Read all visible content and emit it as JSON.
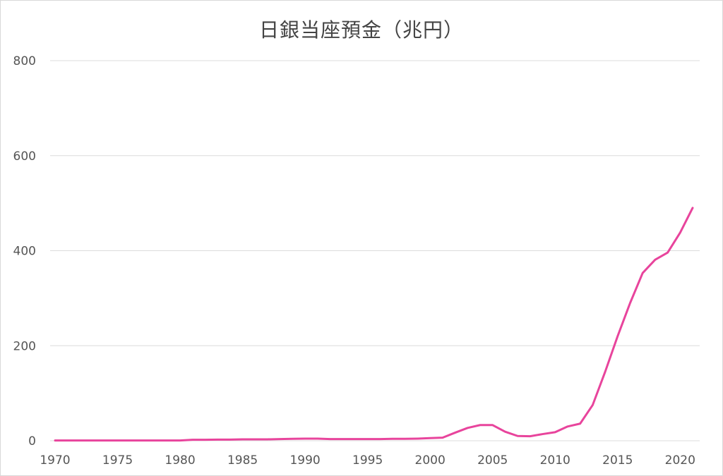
{
  "chart_data": {
    "type": "line",
    "title": "日銀当座預金（兆円）",
    "xlabel": "",
    "ylabel": "",
    "xlim": [
      1970,
      2021
    ],
    "ylim": [
      0,
      800
    ],
    "x_ticks": [
      "1970",
      "1975",
      "1980",
      "1985",
      "1990",
      "1995",
      "2000",
      "2005",
      "2010",
      "2015",
      "2020"
    ],
    "y_ticks": [
      "0",
      "200",
      "400",
      "600",
      "800"
    ],
    "grid": true,
    "legend": "none",
    "line_color": "#E8449C",
    "series": [
      {
        "x": [
          1970,
          1971,
          1972,
          1973,
          1974,
          1975,
          1976,
          1977,
          1978,
          1979,
          1980,
          1981,
          1982,
          1983,
          1984,
          1985,
          1986,
          1987,
          1988,
          1989,
          1990,
          1991,
          1992,
          1993,
          1994,
          1995,
          1996,
          1997,
          1998,
          1999,
          2000,
          2001,
          2002,
          2003,
          2004,
          2005,
          2006,
          2007,
          2008,
          2009,
          2010,
          2011,
          2012,
          2013,
          2014,
          2015,
          2016,
          2017,
          2018,
          2019,
          2020,
          2021
        ],
        "values": [
          0.5,
          0.5,
          0.5,
          0.5,
          0.5,
          0.5,
          0.5,
          0.5,
          0.5,
          0.5,
          0.5,
          2,
          2,
          2.5,
          2.5,
          3,
          3,
          3,
          3.5,
          4,
          4.5,
          4.5,
          3.5,
          3.5,
          3.5,
          3.5,
          3.5,
          4,
          4,
          4.5,
          5.5,
          6.5,
          17,
          27,
          33,
          33,
          19,
          10,
          9.5,
          14,
          18,
          30,
          36,
          75,
          145,
          220,
          290,
          353,
          381,
          396,
          438,
          490
        ]
      }
    ]
  }
}
